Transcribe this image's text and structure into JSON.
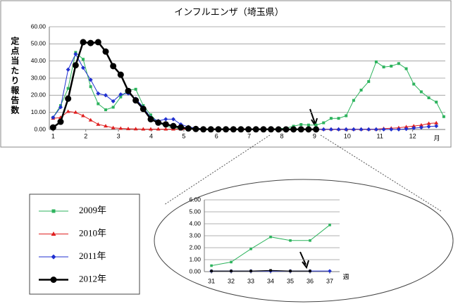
{
  "chart_data": [
    {
      "type": "line",
      "title": "インフルエンザ（埼玉県）",
      "y_label": "定点当たり報告数",
      "x_label": "月",
      "x": [
        1,
        2,
        3,
        4,
        5,
        6,
        7,
        8,
        9,
        10,
        11,
        12,
        13,
        14,
        15,
        16,
        17,
        18,
        19,
        20,
        21,
        22,
        23,
        24,
        25,
        26,
        27,
        28,
        29,
        30,
        31,
        32,
        33,
        34,
        35,
        36,
        37,
        38,
        39,
        40,
        41,
        42,
        43,
        44,
        45,
        46,
        47,
        48,
        49,
        50,
        51,
        52,
        53
      ],
      "xlim": [
        0.5,
        53.2
      ],
      "xticks": [
        {
          "value": 1,
          "label": "1"
        },
        {
          "value": 5.35,
          "label": "2"
        },
        {
          "value": 9.7,
          "label": "3"
        },
        {
          "value": 14.05,
          "label": "4"
        },
        {
          "value": 18.4,
          "label": "5"
        },
        {
          "value": 22.75,
          "label": "6"
        },
        {
          "value": 27.1,
          "label": "7"
        },
        {
          "value": 31.45,
          "label": "8"
        },
        {
          "value": 35.8,
          "label": "9"
        },
        {
          "value": 40.15,
          "label": "10"
        },
        {
          "value": 44.5,
          "label": "11"
        },
        {
          "value": 48.85,
          "label": "12"
        }
      ],
      "ylim": [
        0,
        60
      ],
      "yticks": [
        {
          "value": 0,
          "label": "0.00"
        },
        {
          "value": 10,
          "label": "10.00"
        },
        {
          "value": 20,
          "label": "20.00"
        },
        {
          "value": 30,
          "label": "30.00"
        },
        {
          "value": 40,
          "label": "40.00"
        },
        {
          "value": 50,
          "label": "50.00"
        },
        {
          "value": 60,
          "label": "60.00"
        }
      ],
      "grid": true,
      "legend": true,
      "series": [
        {
          "name": "2009年",
          "color": "#2db35d",
          "marker": "square",
          "values": [
            7,
            14,
            24,
            45,
            41,
            25,
            15,
            11.5,
            13,
            19,
            23,
            23.5,
            14,
            8.5,
            4,
            2,
            1,
            0.6,
            0.4,
            0.3,
            0.2,
            0.2,
            0.2,
            0.2,
            0.2,
            0.3,
            0.3,
            0.3,
            0.3,
            0.4,
            0.5,
            0.8,
            1.9,
            2.9,
            2.6,
            2.6,
            3.9,
            6.5,
            6.5,
            8,
            17,
            23,
            28,
            39.5,
            36.5,
            37,
            38.5,
            35.5,
            26.5,
            22,
            18.5,
            16,
            7.5
          ]
        },
        {
          "name": "2010年",
          "color": "#e02020",
          "marker": "triangle",
          "values": [
            6.5,
            7,
            10.5,
            10,
            8,
            5.5,
            3,
            2,
            1,
            0.6,
            0.4,
            0.3,
            0.2,
            0.2,
            0.2,
            0.2,
            0.2,
            0.2,
            0.2,
            0.2,
            0.2,
            0.2,
            0.2,
            0.2,
            0.2,
            0.2,
            0.2,
            0.2,
            0.2,
            0.2,
            0.2,
            0.2,
            0.2,
            0.2,
            0.2,
            0.2,
            0.2,
            0.2,
            0.2,
            0.2,
            0.2,
            0.2,
            0.2,
            0.2,
            0.5,
            0.7,
            1,
            1.5,
            2,
            2.5,
            3.5,
            3.8,
            null
          ]
        },
        {
          "name": "2011年",
          "color": "#2030d0",
          "marker": "diamond",
          "values": [
            7,
            13,
            35,
            44,
            36,
            29,
            21,
            20,
            16.5,
            20.5,
            21,
            18,
            13,
            7,
            5,
            6,
            6,
            3,
            1.5,
            0.8,
            0.4,
            0.2,
            0.05,
            0.05,
            0.05,
            0.05,
            0.05,
            0.05,
            0.05,
            0.05,
            0.05,
            0.05,
            0.05,
            0.05,
            0.05,
            0.05,
            0.05,
            0.05,
            0.05,
            0.05,
            0.05,
            0.05,
            0.05,
            0.05,
            0.05,
            0.05,
            0.05,
            0.3,
            0.8,
            1.2,
            1.7,
            2,
            null
          ]
        },
        {
          "name": "2012年",
          "color": "#000000",
          "marker": "circle",
          "values": [
            1.2,
            4.5,
            18,
            37.5,
            51,
            50.5,
            51,
            45.5,
            37,
            32,
            22.5,
            17,
            12,
            6,
            4,
            3,
            2,
            1.2,
            0.6,
            0.3,
            0.1,
            0.1,
            0.1,
            0.1,
            0.1,
            0.1,
            0.1,
            0.1,
            0.1,
            0.1,
            0.05,
            0.05,
            0.05,
            0.1,
            0.05,
            0.05,
            null,
            null,
            null,
            null,
            null,
            null,
            null,
            null,
            null,
            null,
            null,
            null,
            null,
            null,
            null,
            null,
            null
          ]
        }
      ]
    },
    {
      "type": "line",
      "x_label": "週",
      "x": [
        31,
        32,
        33,
        34,
        35,
        36,
        37
      ],
      "xlim": [
        30.64,
        37.5
      ],
      "xticks": [
        31,
        32,
        33,
        34,
        35,
        36,
        37
      ],
      "ylim": [
        0,
        6
      ],
      "yticks": [
        {
          "value": 0,
          "label": "0.00"
        },
        {
          "value": 1,
          "label": "1.00"
        },
        {
          "value": 2,
          "label": "2.00"
        },
        {
          "value": 3,
          "label": "3.00"
        },
        {
          "value": 4,
          "label": "4.00"
        },
        {
          "value": 5,
          "label": "5.00"
        },
        {
          "value": 6,
          "label": "6.00"
        }
      ],
      "grid": true,
      "legend": false,
      "series": [
        {
          "color": "#2db35d",
          "marker": "square",
          "values": [
            0.5,
            0.8,
            1.9,
            2.9,
            2.6,
            2.6,
            3.9
          ]
        },
        {
          "color": "#2030d0",
          "marker": "diamond",
          "values": [
            0.05,
            0.05,
            0.05,
            0.05,
            0.05,
            0.05,
            0.05
          ]
        },
        {
          "color": "#000000",
          "marker": "square",
          "values": [
            0.05,
            0.05,
            0.05,
            0.1,
            0.05,
            0.05,
            null
          ]
        }
      ]
    }
  ]
}
